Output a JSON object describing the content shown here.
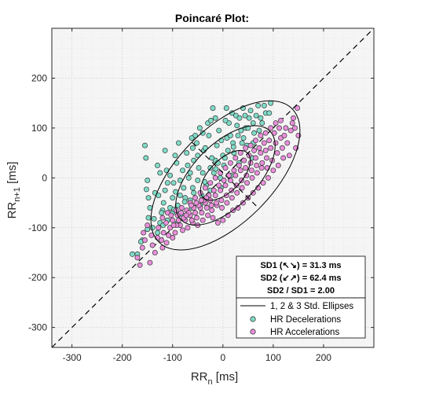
{
  "chart_data": {
    "type": "scatter",
    "title": "Poincaré Plot:",
    "xlabel": {
      "base": "RR",
      "sub": "n",
      "unit": " [ms]"
    },
    "ylabel": {
      "base": "RR",
      "sub": "n+1",
      "unit": " [ms]"
    },
    "xlim": [
      -340,
      300
    ],
    "ylim": [
      -340,
      300
    ],
    "xticks": [
      -300,
      -200,
      -100,
      0,
      100,
      200
    ],
    "yticks": [
      -300,
      -200,
      -100,
      0,
      100,
      200
    ],
    "grid": true,
    "legend_position": "bottom-right",
    "stats": {
      "sd1": "SD1 (↖↘) = 31.3 ms",
      "sd2": "SD2 (↙↗) = 62.4 ms",
      "ratio": "SD2 / SD1 = 2.00"
    },
    "ellipses": {
      "center": [
        5,
        5
      ],
      "sd1": 31.3,
      "sd2": 62.4,
      "multiples": [
        1,
        2,
        3
      ],
      "color": "#000000"
    },
    "identity_line": {
      "style": "dashed",
      "color": "#000000"
    },
    "series": [
      {
        "name": "HR Decelerations",
        "color": "#7fdcc8",
        "points": [
          [
            -180,
            -153
          ],
          [
            -170,
            -153
          ],
          [
            -160,
            -125
          ],
          [
            -155,
            65
          ],
          [
            -153,
            40
          ],
          [
            -150,
            -5
          ],
          [
            -152,
            -23
          ],
          [
            -148,
            -40
          ],
          [
            -145,
            -60
          ],
          [
            -148,
            -80
          ],
          [
            -150,
            -103
          ],
          [
            -140,
            -100
          ],
          [
            -135,
            -30
          ],
          [
            -125,
            -90
          ],
          [
            -120,
            -65
          ],
          [
            -110,
            -85
          ],
          [
            -100,
            -70
          ],
          [
            -90,
            -55
          ],
          [
            -75,
            -40
          ],
          [
            -60,
            -20
          ],
          [
            -50,
            -5
          ],
          [
            -40,
            10
          ],
          [
            -25,
            20
          ],
          [
            -15,
            35
          ],
          [
            0,
            45
          ],
          [
            10,
            55
          ],
          [
            20,
            70
          ],
          [
            30,
            85
          ],
          [
            45,
            100
          ],
          [
            60,
            110
          ],
          [
            75,
            120
          ],
          [
            85,
            130
          ],
          [
            -115,
            -25
          ],
          [
            -105,
            5
          ],
          [
            -98,
            -10
          ],
          [
            -92,
            30
          ],
          [
            -85,
            -35
          ],
          [
            -80,
            15
          ],
          [
            -72,
            50
          ],
          [
            -68,
            0
          ],
          [
            -62,
            -60
          ],
          [
            -58,
            35
          ],
          [
            -52,
            70
          ],
          [
            -48,
            20
          ],
          [
            -42,
            -35
          ],
          [
            -38,
            55
          ],
          [
            -33,
            -15
          ],
          [
            -28,
            85
          ],
          [
            -22,
            40
          ],
          [
            -18,
            10
          ],
          [
            -12,
            65
          ],
          [
            -8,
            95
          ],
          [
            -4,
            -20
          ],
          [
            2,
            25
          ],
          [
            8,
            80
          ],
          [
            12,
            110
          ],
          [
            16,
            5
          ],
          [
            22,
            50
          ],
          [
            26,
            125
          ],
          [
            32,
            30
          ],
          [
            36,
            95
          ],
          [
            40,
            140
          ],
          [
            48,
            65
          ],
          [
            52,
            120
          ],
          [
            58,
            40
          ],
          [
            62,
            90
          ],
          [
            -20,
            140
          ],
          [
            70,
            145
          ],
          [
            -55,
            85
          ],
          [
            -95,
            45
          ],
          [
            -30,
            110
          ],
          [
            15,
            85
          ],
          [
            5,
            115
          ],
          [
            -10,
            30
          ],
          [
            -65,
            -45
          ],
          [
            -45,
            -55
          ],
          [
            -25,
            -25
          ],
          [
            -5,
            0
          ],
          [
            -80,
            -75
          ],
          [
            -100,
            -40
          ],
          [
            -110,
            -10
          ],
          [
            -118,
            -50
          ],
          [
            -125,
            10
          ],
          [
            -70,
            25
          ],
          [
            -35,
            60
          ],
          [
            38,
            70
          ],
          [
            28,
            105
          ],
          [
            -130,
            25
          ],
          [
            -122,
            -70
          ],
          [
            -115,
            55
          ],
          [
            -60,
            60
          ],
          [
            -40,
            90
          ],
          [
            -15,
            120
          ],
          [
            55,
            135
          ],
          [
            78,
            110
          ],
          [
            95,
            150
          ],
          [
            -88,
            70
          ],
          [
            -78,
            -20
          ],
          [
            44,
            125
          ],
          [
            -3,
            75
          ],
          [
            18,
            130
          ],
          [
            -50,
            45
          ],
          [
            -65,
            10
          ],
          [
            -85,
            -5
          ],
          [
            -90,
            -90
          ],
          [
            -105,
            -60
          ],
          [
            -130,
            -110
          ],
          [
            -137,
            -82
          ],
          [
            -163,
            -128
          ],
          [
            -119,
            -95
          ],
          [
            -97,
            -63
          ],
          [
            -62,
            80
          ],
          [
            -46,
            100
          ],
          [
            -24,
            115
          ],
          [
            7,
            140
          ],
          [
            33,
            120
          ],
          [
            50,
            100
          ],
          [
            66,
            125
          ],
          [
            82,
            145
          ],
          [
            -128,
            -35
          ],
          [
            -112,
            15
          ],
          [
            -94,
            -28
          ],
          [
            -76,
            -48
          ],
          [
            -58,
            -30
          ],
          [
            -36,
            -8
          ],
          [
            -14,
            18
          ],
          [
            4,
            40
          ],
          [
            21,
            62
          ],
          [
            41,
            80
          ],
          [
            60,
            70
          ],
          [
            72,
            95
          ],
          [
            92,
            130
          ]
        ]
      },
      {
        "name": "HR Accelerations",
        "color": "#ea8fdc",
        "points": [
          [
            -170,
            -160
          ],
          [
            -145,
            -170
          ],
          [
            -135,
            -150
          ],
          [
            -120,
            -140
          ],
          [
            -112,
            -130
          ],
          [
            -100,
            -120
          ],
          [
            -155,
            -125
          ],
          [
            -130,
            -120
          ],
          [
            -118,
            -110
          ],
          [
            -105,
            -100
          ],
          [
            -95,
            -110
          ],
          [
            -150,
            -95
          ],
          [
            -140,
            -135
          ],
          [
            -85,
            -95
          ],
          [
            -75,
            -85
          ],
          [
            -65,
            -75
          ],
          [
            -55,
            -70
          ],
          [
            -45,
            -60
          ],
          [
            -35,
            -50
          ],
          [
            -25,
            -45
          ],
          [
            -15,
            -35
          ],
          [
            -5,
            -25
          ],
          [
            5,
            -15
          ],
          [
            15,
            -5
          ],
          [
            25,
            5
          ],
          [
            35,
            15
          ],
          [
            45,
            20
          ],
          [
            55,
            30
          ],
          [
            65,
            40
          ],
          [
            75,
            50
          ],
          [
            85,
            55
          ],
          [
            95,
            60
          ],
          [
            105,
            70
          ],
          [
            115,
            80
          ],
          [
            125,
            100
          ],
          [
            135,
            95
          ],
          [
            140,
            120
          ],
          [
            145,
            60
          ],
          [
            150,
            85
          ],
          [
            120,
            40
          ],
          [
            110,
            25
          ],
          [
            100,
            15
          ],
          [
            90,
            0
          ],
          [
            80,
            -10
          ],
          [
            70,
            -20
          ],
          [
            60,
            -30
          ],
          [
            50,
            -40
          ],
          [
            40,
            -50
          ],
          [
            30,
            -60
          ],
          [
            20,
            -65
          ],
          [
            10,
            -75
          ],
          [
            0,
            -85
          ],
          [
            -10,
            -90
          ],
          [
            -20,
            -80
          ],
          [
            -30,
            -75
          ],
          [
            -40,
            -85
          ],
          [
            -50,
            -95
          ],
          [
            -60,
            -90
          ],
          [
            -70,
            -100
          ],
          [
            -80,
            -105
          ],
          [
            -90,
            -75
          ],
          [
            -100,
            -85
          ],
          [
            -110,
            -70
          ],
          [
            -120,
            -80
          ],
          [
            -65,
            -50
          ],
          [
            -55,
            -40
          ],
          [
            -45,
            -30
          ],
          [
            -35,
            -20
          ],
          [
            -25,
            -10
          ],
          [
            -15,
            0
          ],
          [
            -5,
            10
          ],
          [
            5,
            20
          ],
          [
            15,
            30
          ],
          [
            25,
            40
          ],
          [
            35,
            50
          ],
          [
            45,
            60
          ],
          [
            55,
            65
          ],
          [
            65,
            75
          ],
          [
            75,
            85
          ],
          [
            85,
            90
          ],
          [
            95,
            100
          ],
          [
            105,
            110
          ],
          [
            115,
            115
          ],
          [
            128,
            70
          ],
          [
            132,
            45
          ],
          [
            118,
            60
          ],
          [
            108,
            50
          ],
          [
            98,
            35
          ],
          [
            88,
            20
          ],
          [
            78,
            30
          ],
          [
            68,
            10
          ],
          [
            58,
            0
          ],
          [
            48,
            -10
          ],
          [
            38,
            -20
          ],
          [
            28,
            -30
          ],
          [
            18,
            -40
          ],
          [
            8,
            -50
          ],
          [
            -2,
            -60
          ],
          [
            -12,
            -55
          ],
          [
            -22,
            -65
          ],
          [
            -32,
            -60
          ],
          [
            -42,
            -70
          ],
          [
            -52,
            -80
          ],
          [
            -62,
            -85
          ],
          [
            -72,
            -65
          ],
          [
            -82,
            -60
          ],
          [
            -92,
            -95
          ],
          [
            62,
            55
          ],
          [
            52,
            45
          ],
          [
            42,
            35
          ],
          [
            32,
            25
          ],
          [
            22,
            15
          ],
          [
            12,
            5
          ],
          [
            2,
            -5
          ],
          [
            -8,
            -15
          ],
          [
            -18,
            -25
          ],
          [
            -28,
            -35
          ],
          [
            -38,
            -45
          ],
          [
            -48,
            -55
          ],
          [
            -58,
            -60
          ],
          [
            -68,
            -70
          ],
          [
            -78,
            -80
          ],
          [
            -88,
            -85
          ],
          [
            -98,
            -95
          ],
          [
            -108,
            -115
          ],
          [
            -122,
            -125
          ],
          [
            -160,
            -140
          ],
          [
            92,
            75
          ],
          [
            82,
            70
          ],
          [
            72,
            60
          ],
          [
            102,
            90
          ],
          [
            112,
            100
          ],
          [
            122,
            85
          ],
          [
            138,
            110
          ],
          [
            148,
            140
          ],
          [
            143,
            100
          ],
          [
            87,
            40
          ],
          [
            77,
            20
          ],
          [
            67,
            25
          ],
          [
            57,
            15
          ],
          [
            47,
            5
          ],
          [
            37,
            -5
          ],
          [
            27,
            -15
          ],
          [
            17,
            -25
          ],
          [
            7,
            -35
          ],
          [
            -3,
            -45
          ],
          [
            -13,
            -50
          ],
          [
            -23,
            -55
          ],
          [
            -33,
            -40
          ],
          [
            -43,
            -45
          ],
          [
            -53,
            -50
          ],
          [
            -63,
            -55
          ],
          [
            -73,
            -75
          ],
          [
            -83,
            -70
          ],
          [
            -93,
            -65
          ],
          [
            -103,
            -75
          ],
          [
            -113,
            -90
          ],
          [
            -128,
            -100
          ],
          [
            -142,
            -115
          ],
          [
            -158,
            -110
          ],
          [
            -165,
            -175
          ]
        ]
      }
    ]
  },
  "legend": {
    "ellipse_label": "1, 2 & 3 Std. Ellipses",
    "dec_label": "HR Decelerations",
    "acc_label": "HR Accelerations"
  },
  "colors": {
    "plot_bg": "#f5f5f5",
    "grid_major": "#d0d0d0",
    "grid_minor": "#e6e6e6",
    "marker_edge": "#333333",
    "axis": "#262626"
  }
}
